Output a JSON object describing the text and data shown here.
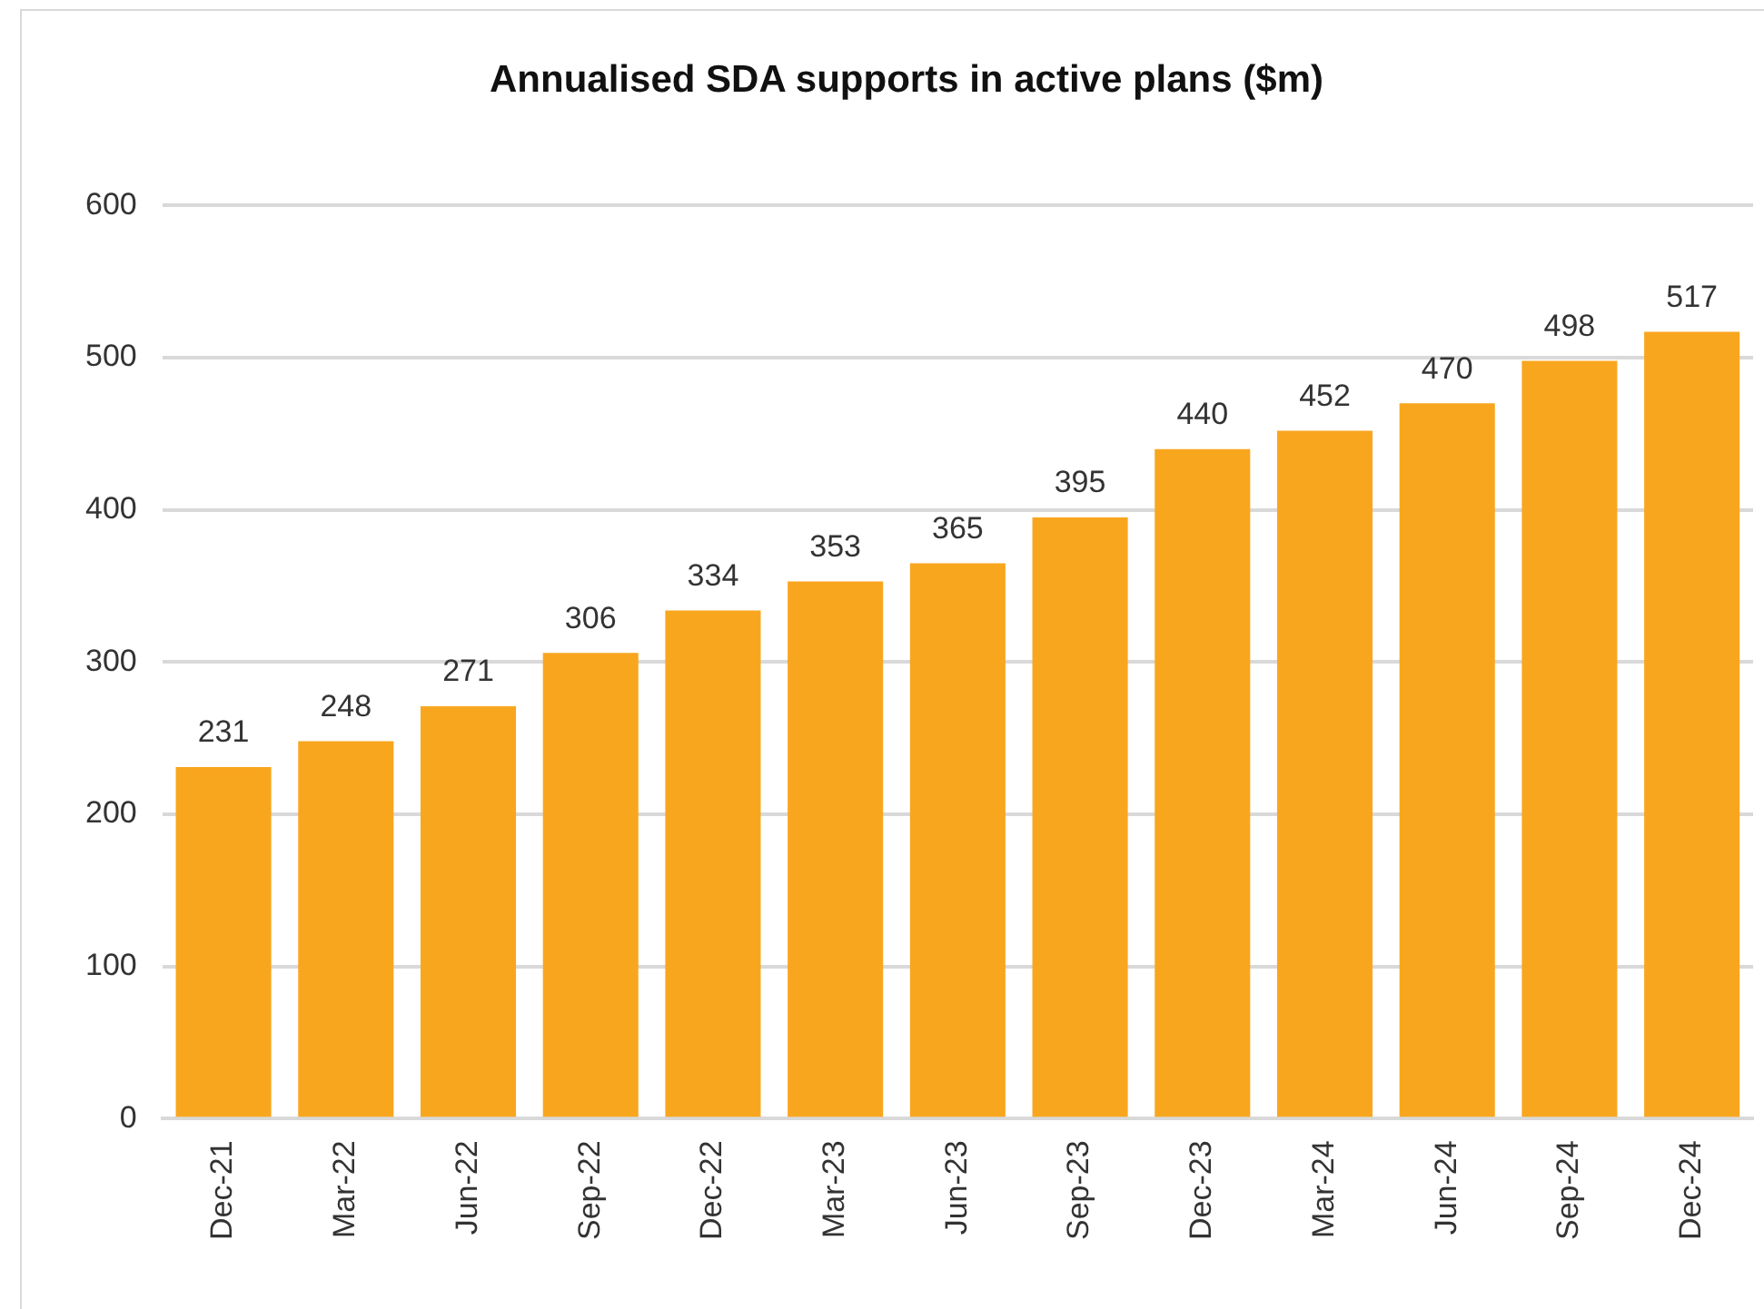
{
  "chart_data": {
    "type": "bar",
    "title": "Annualised SDA supports in active plans ($m)",
    "categories": [
      "Dec-21",
      "Mar-22",
      "Jun-22",
      "Sep-22",
      "Dec-22",
      "Mar-23",
      "Jun-23",
      "Sep-23",
      "Dec-23",
      "Mar-24",
      "Jun-24",
      "Sep-24",
      "Dec-24"
    ],
    "values": [
      231,
      248,
      271,
      306,
      334,
      353,
      365,
      395,
      440,
      452,
      470,
      498,
      517
    ],
    "color": "#f9a61f",
    "ylim": [
      0,
      600
    ],
    "yticks": [
      0,
      100,
      200,
      300,
      400,
      500,
      600
    ],
    "grid": "y",
    "data_labels": true
  }
}
